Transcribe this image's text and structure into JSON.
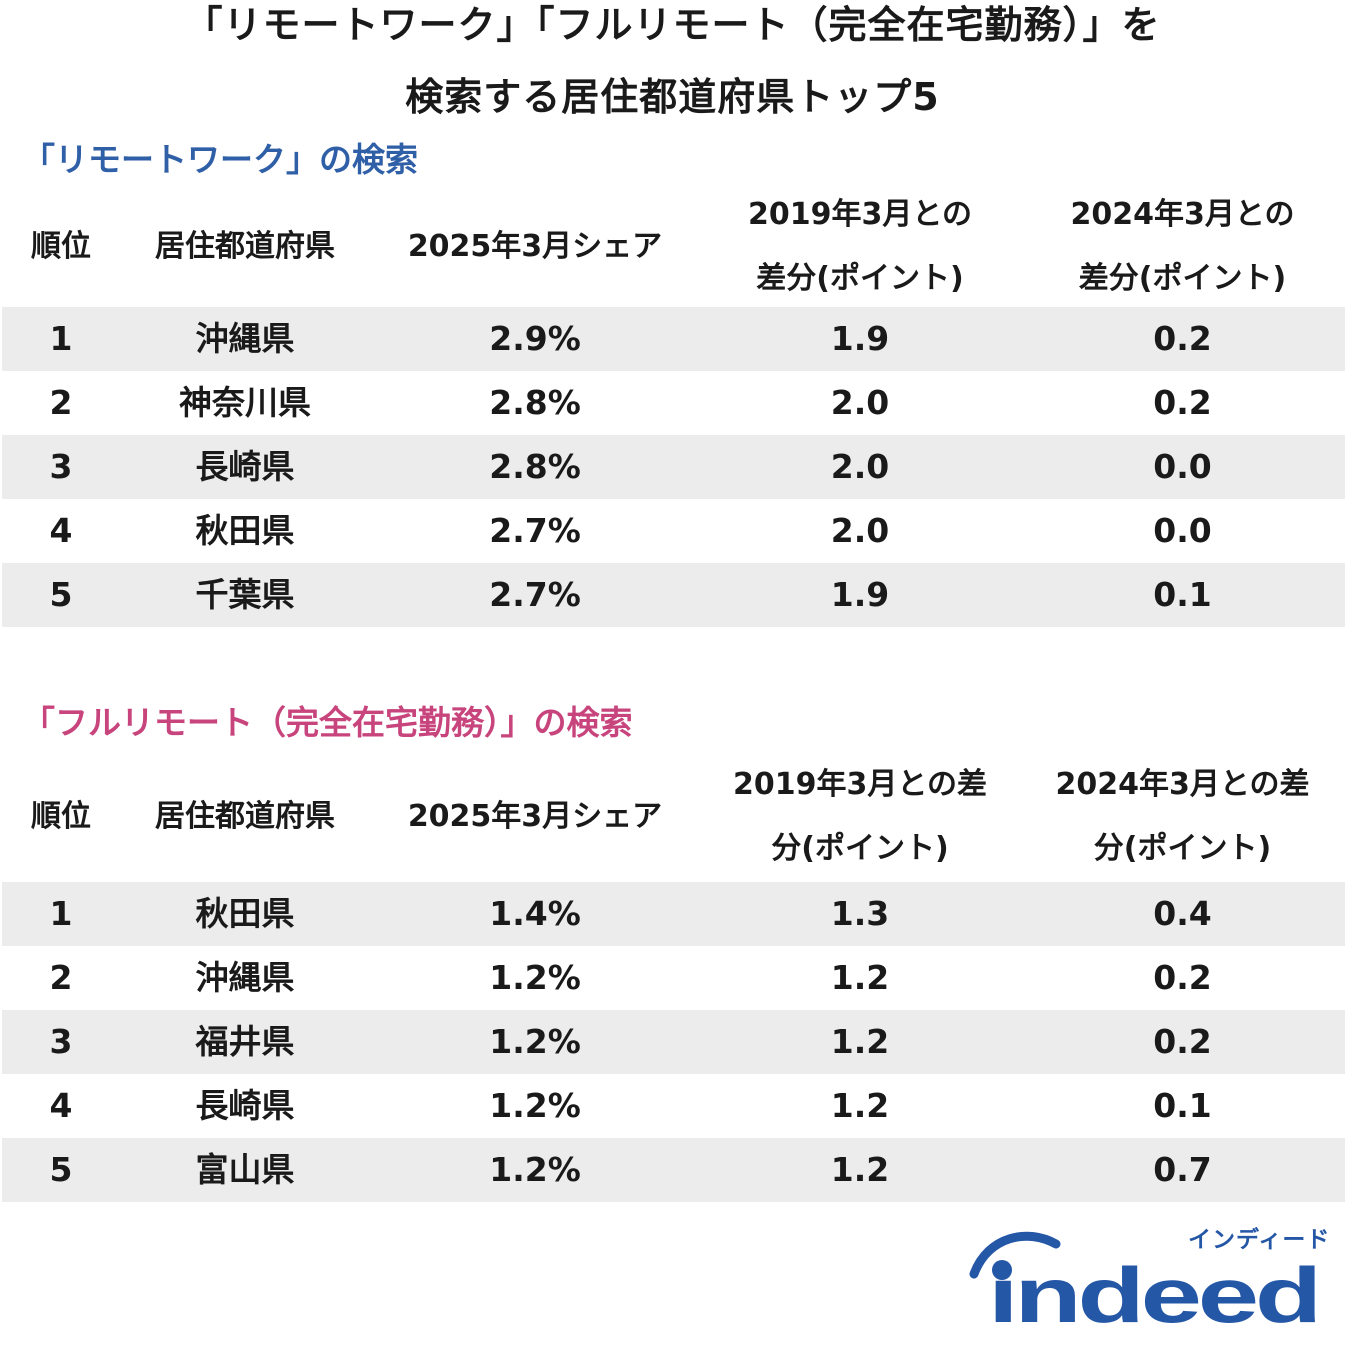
{
  "title": {
    "line1": "「リモートワーク」「フルリモート（完全在宅勤務）」を",
    "line2": "検索する居住都道府県トップ5"
  },
  "colors": {
    "section1": "#2f5fa7",
    "section2": "#c8447c",
    "brand": "#2557a7",
    "row_shade": "#ececec"
  },
  "tables": [
    {
      "title": "「リモートワーク」の検索",
      "headers": [
        "順位",
        "居住都道府県",
        "2025年3月シェア",
        "2019年3月との\n差分(ポイント)",
        "2024年3月との\n差分(ポイント)"
      ],
      "rows": [
        [
          "1",
          "沖縄県",
          "2.9%",
          "1.9",
          "0.2"
        ],
        [
          "2",
          "神奈川県",
          "2.8%",
          "2.0",
          "0.2"
        ],
        [
          "3",
          "長崎県",
          "2.8%",
          "2.0",
          "0.0"
        ],
        [
          "4",
          "秋田県",
          "2.7%",
          "2.0",
          "0.0"
        ],
        [
          "5",
          "千葉県",
          "2.7%",
          "1.9",
          "0.1"
        ]
      ]
    },
    {
      "title": "「フルリモート（完全在宅勤務）」の検索",
      "headers": [
        "順位",
        "居住都道府県",
        "2025年3月シェア",
        "2019年3月との差\n分(ポイント)",
        "2024年3月との差\n分(ポイント)"
      ],
      "rows": [
        [
          "1",
          "秋田県",
          "1.4%",
          "1.3",
          "0.4"
        ],
        [
          "2",
          "沖縄県",
          "1.2%",
          "1.2",
          "0.2"
        ],
        [
          "3",
          "福井県",
          "1.2%",
          "1.2",
          "0.2"
        ],
        [
          "4",
          "長崎県",
          "1.2%",
          "1.2",
          "0.1"
        ],
        [
          "5",
          "富山県",
          "1.2%",
          "1.2",
          "0.7"
        ]
      ]
    }
  ],
  "logo": {
    "kana": "インディード",
    "wordmark": "indeed",
    "icon": "indeed-logo-icon"
  }
}
